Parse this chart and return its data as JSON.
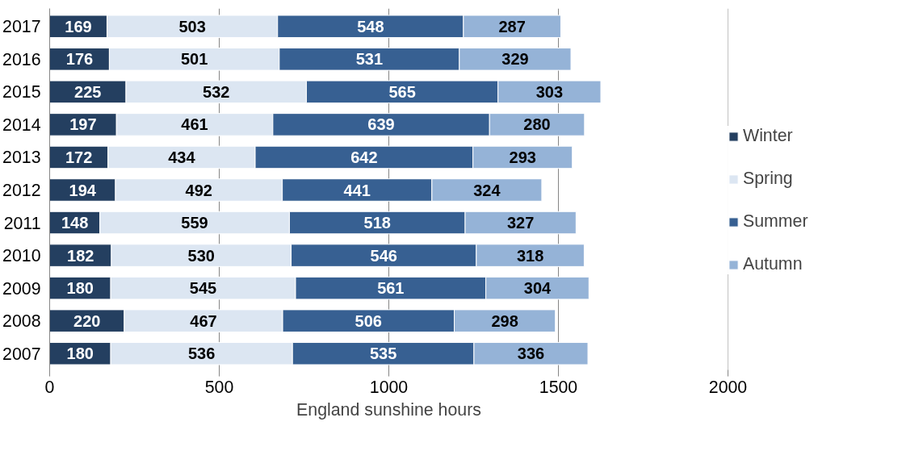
{
  "chart_data": {
    "type": "bar",
    "orientation": "horizontal",
    "stacked": true,
    "xlabel": "England sunshine hours",
    "categories": [
      "2017",
      "2016",
      "2015",
      "2014",
      "2013",
      "2012",
      "2011",
      "2010",
      "2009",
      "2008",
      "2007"
    ],
    "series": [
      {
        "name": "Winter",
        "color": "#243f60",
        "values": [
          169,
          176,
          225,
          197,
          172,
          194,
          148,
          182,
          180,
          220,
          180
        ]
      },
      {
        "name": "Spring",
        "color": "#dce6f2",
        "values": [
          503,
          501,
          532,
          461,
          434,
          492,
          559,
          530,
          545,
          467,
          536
        ]
      },
      {
        "name": "Summer",
        "color": "#376092",
        "values": [
          548,
          531,
          565,
          639,
          642,
          441,
          518,
          546,
          561,
          506,
          535
        ]
      },
      {
        "name": "Autumn",
        "color": "#95b3d7",
        "values": [
          287,
          329,
          303,
          280,
          293,
          324,
          327,
          318,
          304,
          298,
          336
        ]
      }
    ],
    "xlim": [
      0,
      2000
    ],
    "xticks": [
      0,
      500,
      1000,
      1500,
      2000
    ],
    "grid": "x",
    "legend": "right",
    "data_labels": true
  }
}
